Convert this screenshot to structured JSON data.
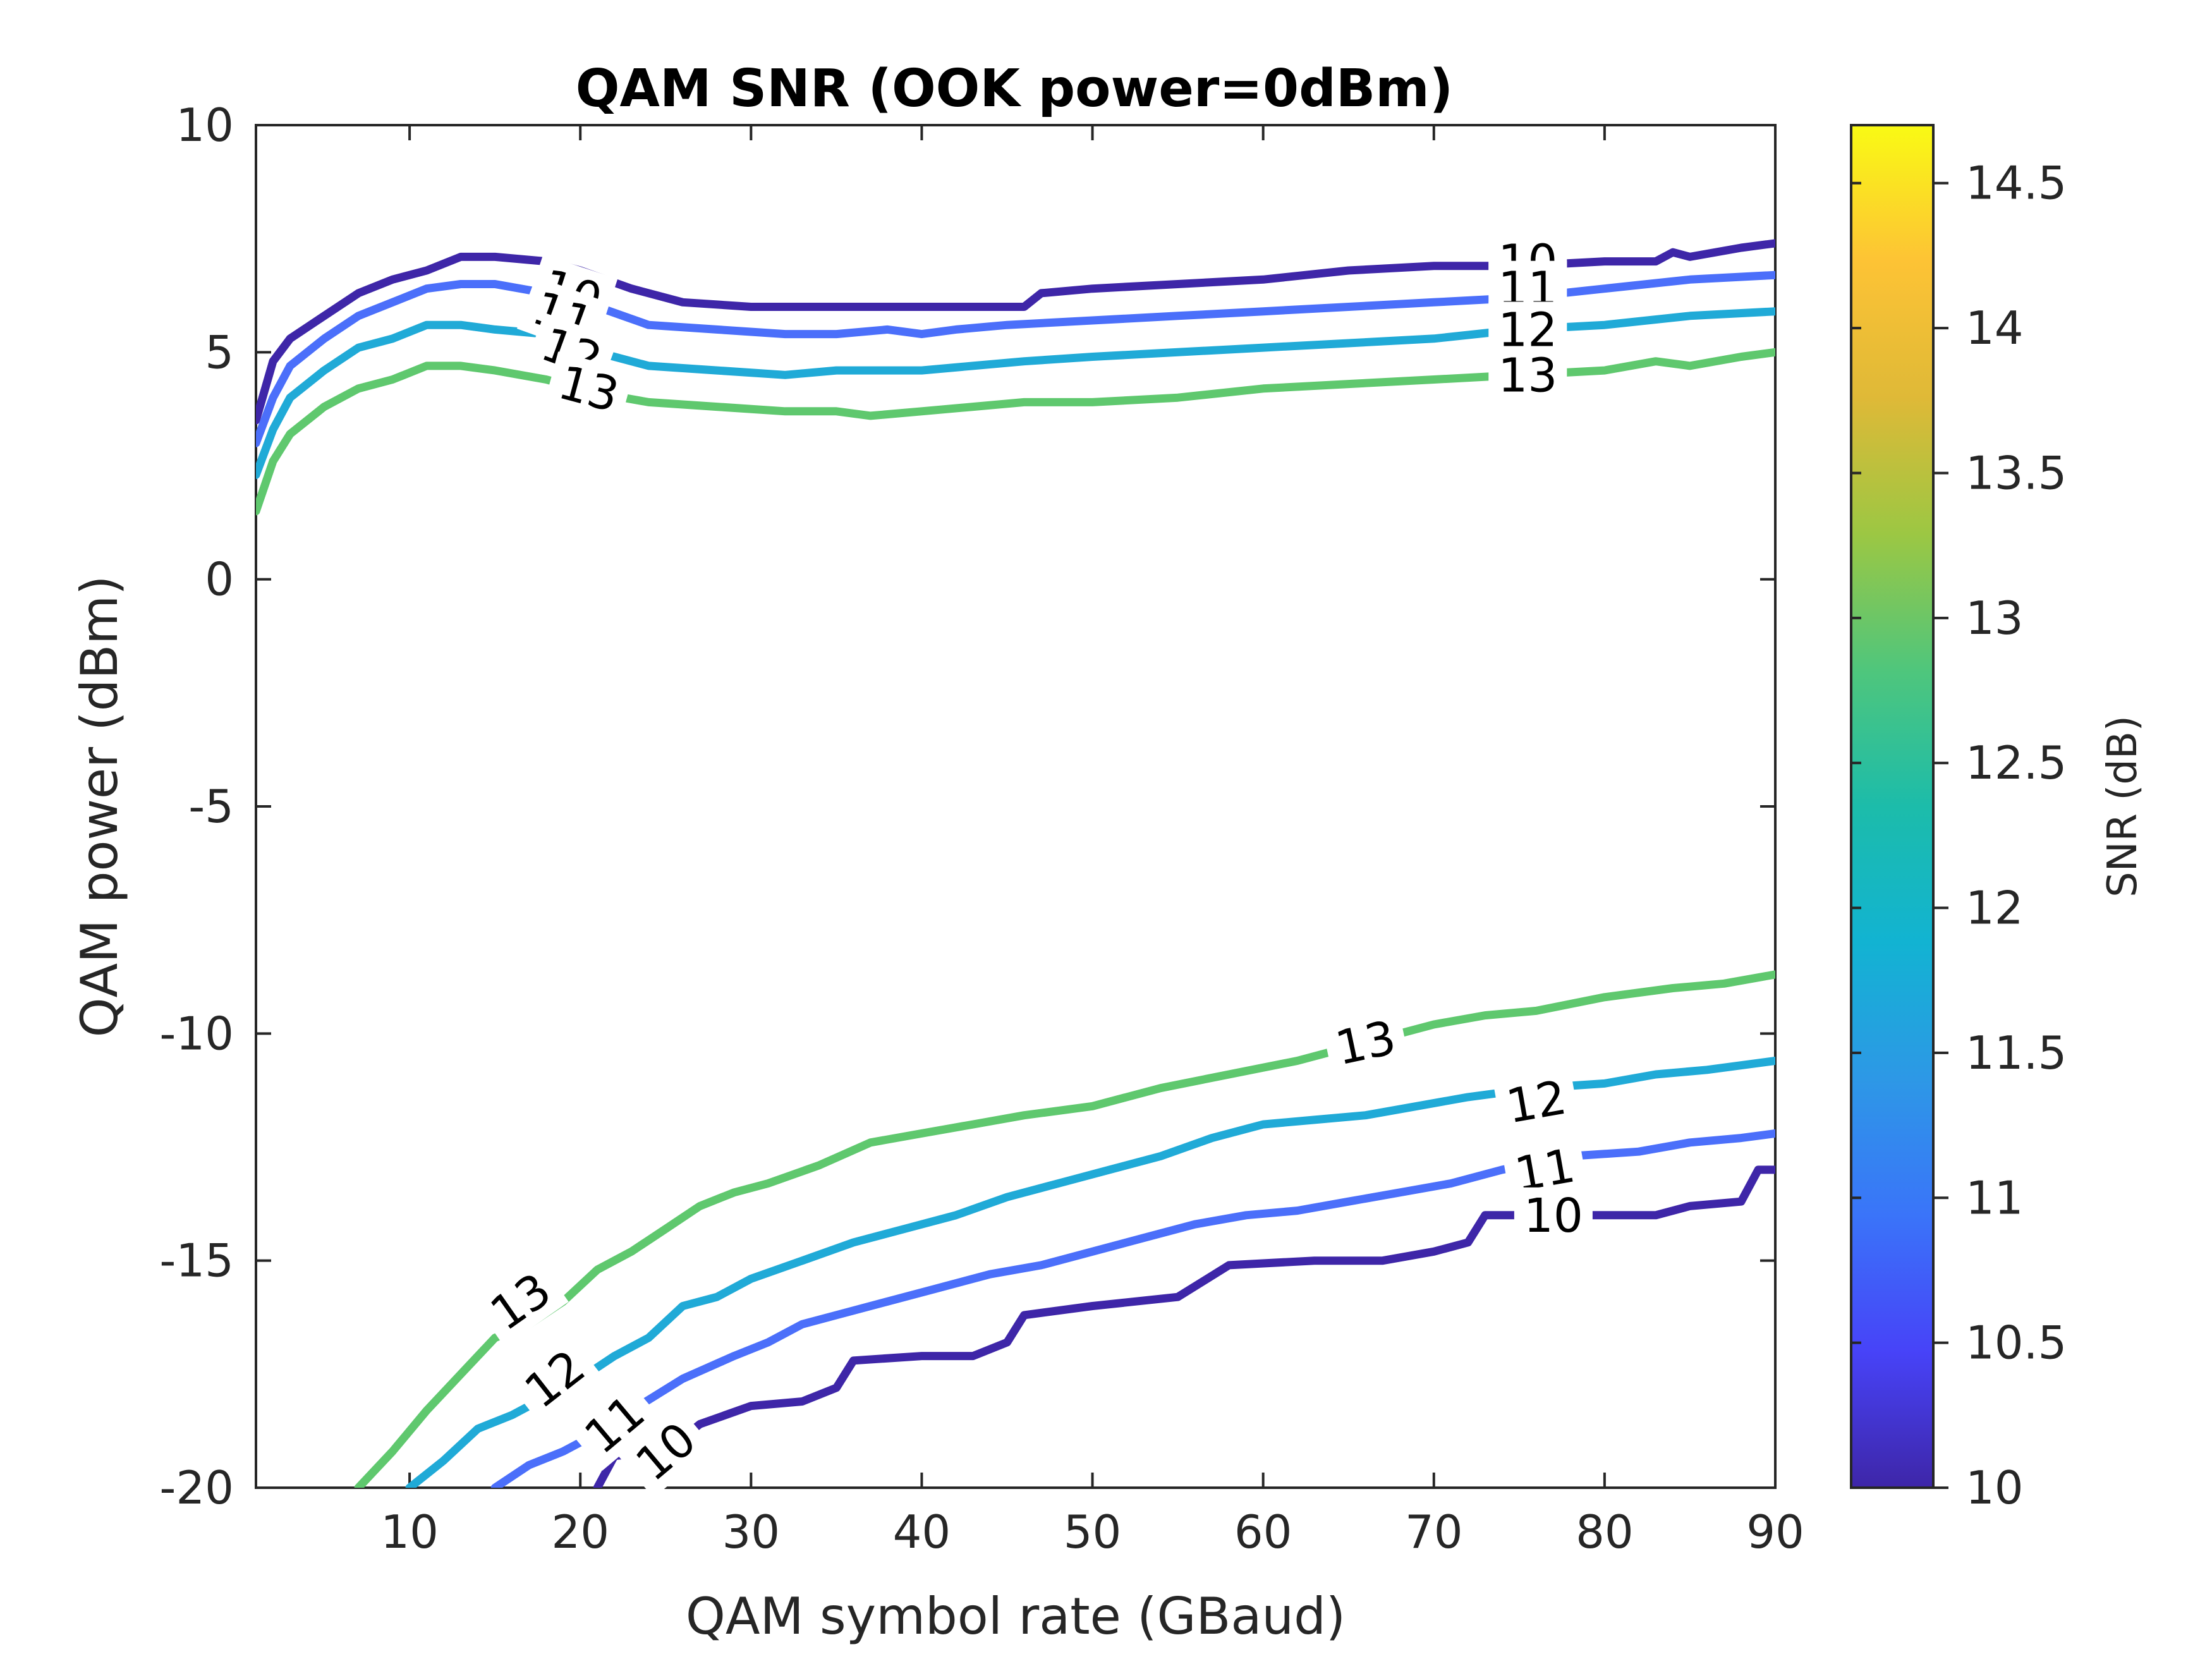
{
  "chart_data": {
    "type": "contour",
    "title": "QAM SNR (OOK power=0dBm)",
    "xlabel": "QAM symbol rate (GBaud)",
    "ylabel": "QAM power (dBm)",
    "colorbar_label": "SNR (dB)",
    "xlim": [
      1,
      90
    ],
    "ylim": [
      -20,
      10
    ],
    "xticks": [
      10,
      20,
      30,
      40,
      50,
      60,
      70,
      80,
      90
    ],
    "yticks": [
      -20,
      -15,
      -10,
      -5,
      0,
      5,
      10
    ],
    "clim": [
      10,
      14.7
    ],
    "cticks": [
      10,
      10.5,
      11,
      11.5,
      12,
      12.5,
      13,
      13.5,
      14,
      14.5
    ],
    "grid": false,
    "colormap": "parula",
    "series": [
      {
        "level": 10,
        "color": "#3e26a8",
        "branch": "upper",
        "points": [
          [
            1,
            3.5
          ],
          [
            2,
            4.8
          ],
          [
            3,
            5.3
          ],
          [
            5,
            5.8
          ],
          [
            7,
            6.3
          ],
          [
            9,
            6.6
          ],
          [
            11,
            6.8
          ],
          [
            13,
            7.1
          ],
          [
            15,
            7.1
          ],
          [
            18,
            7.0
          ],
          [
            20,
            6.8
          ],
          [
            23,
            6.4
          ],
          [
            26,
            6.1
          ],
          [
            30,
            6.0
          ],
          [
            35,
            6.0
          ],
          [
            40,
            6.0
          ],
          [
            45,
            6.0
          ],
          [
            46,
            6.0
          ],
          [
            47,
            6.3
          ],
          [
            50,
            6.4
          ],
          [
            55,
            6.5
          ],
          [
            60,
            6.6
          ],
          [
            65,
            6.8
          ],
          [
            70,
            6.9
          ],
          [
            75,
            6.9
          ],
          [
            80,
            7.0
          ],
          [
            83,
            7.0
          ],
          [
            84,
            7.2
          ],
          [
            85,
            7.1
          ],
          [
            88,
            7.3
          ],
          [
            90,
            7.4
          ]
        ]
      },
      {
        "level": 10,
        "color": "#3e26a8",
        "branch": "lower",
        "points": [
          [
            21,
            -20
          ],
          [
            22,
            -19.3
          ],
          [
            25,
            -19.2
          ],
          [
            27,
            -18.6
          ],
          [
            30,
            -18.2
          ],
          [
            33,
            -18.1
          ],
          [
            35,
            -17.8
          ],
          [
            36,
            -17.2
          ],
          [
            40,
            -17.1
          ],
          [
            43,
            -17.1
          ],
          [
            45,
            -16.8
          ],
          [
            46,
            -16.2
          ],
          [
            50,
            -16.0
          ],
          [
            55,
            -15.8
          ],
          [
            58,
            -15.1
          ],
          [
            63,
            -15.0
          ],
          [
            67,
            -15.0
          ],
          [
            70,
            -14.8
          ],
          [
            72,
            -14.6
          ],
          [
            73,
            -14.0
          ],
          [
            76,
            -14.0
          ],
          [
            80,
            -14.0
          ],
          [
            83,
            -14.0
          ],
          [
            85,
            -13.8
          ],
          [
            88,
            -13.7
          ],
          [
            89,
            -13.0
          ],
          [
            90,
            -13.0
          ]
        ]
      },
      {
        "level": 11,
        "color": "#4b6ffa",
        "branch": "upper",
        "points": [
          [
            1,
            3.0
          ],
          [
            2,
            4.0
          ],
          [
            3,
            4.7
          ],
          [
            5,
            5.3
          ],
          [
            7,
            5.8
          ],
          [
            9,
            6.1
          ],
          [
            11,
            6.4
          ],
          [
            13,
            6.5
          ],
          [
            15,
            6.5
          ],
          [
            18,
            6.3
          ],
          [
            21,
            6.0
          ],
          [
            24,
            5.6
          ],
          [
            28,
            5.5
          ],
          [
            32,
            5.4
          ],
          [
            35,
            5.4
          ],
          [
            38,
            5.5
          ],
          [
            40,
            5.4
          ],
          [
            42,
            5.5
          ],
          [
            45,
            5.6
          ],
          [
            50,
            5.7
          ],
          [
            55,
            5.8
          ],
          [
            60,
            5.9
          ],
          [
            65,
            6.0
          ],
          [
            70,
            6.1
          ],
          [
            75,
            6.2
          ],
          [
            80,
            6.4
          ],
          [
            85,
            6.6
          ],
          [
            90,
            6.7
          ]
        ]
      },
      {
        "level": 11,
        "color": "#4b6ffa",
        "branch": "lower",
        "points": [
          [
            15,
            -20
          ],
          [
            17,
            -19.5
          ],
          [
            19,
            -19.2
          ],
          [
            21,
            -18.8
          ],
          [
            23,
            -18.3
          ],
          [
            26,
            -17.6
          ],
          [
            29,
            -17.1
          ],
          [
            31,
            -16.8
          ],
          [
            33,
            -16.4
          ],
          [
            35,
            -16.2
          ],
          [
            38,
            -15.9
          ],
          [
            41,
            -15.6
          ],
          [
            44,
            -15.3
          ],
          [
            47,
            -15.1
          ],
          [
            50,
            -14.8
          ],
          [
            53,
            -14.5
          ],
          [
            56,
            -14.2
          ],
          [
            59,
            -14.0
          ],
          [
            62,
            -13.9
          ],
          [
            65,
            -13.7
          ],
          [
            68,
            -13.5
          ],
          [
            71,
            -13.3
          ],
          [
            74,
            -13.0
          ],
          [
            78,
            -12.7
          ],
          [
            82,
            -12.6
          ],
          [
            85,
            -12.4
          ],
          [
            88,
            -12.3
          ],
          [
            90,
            -12.2
          ]
        ]
      },
      {
        "level": 12,
        "color": "#20aad7",
        "branch": "upper",
        "points": [
          [
            1,
            2.3
          ],
          [
            2,
            3.3
          ],
          [
            3,
            4.0
          ],
          [
            5,
            4.6
          ],
          [
            7,
            5.1
          ],
          [
            9,
            5.3
          ],
          [
            11,
            5.6
          ],
          [
            13,
            5.6
          ],
          [
            15,
            5.5
          ],
          [
            18,
            5.4
          ],
          [
            21,
            5.0
          ],
          [
            24,
            4.7
          ],
          [
            28,
            4.6
          ],
          [
            32,
            4.5
          ],
          [
            35,
            4.6
          ],
          [
            38,
            4.6
          ],
          [
            40,
            4.6
          ],
          [
            43,
            4.7
          ],
          [
            46,
            4.8
          ],
          [
            50,
            4.9
          ],
          [
            55,
            5.0
          ],
          [
            60,
            5.1
          ],
          [
            65,
            5.2
          ],
          [
            70,
            5.3
          ],
          [
            75,
            5.5
          ],
          [
            80,
            5.6
          ],
          [
            85,
            5.8
          ],
          [
            90,
            5.9
          ]
        ]
      },
      {
        "level": 12,
        "color": "#20aad7",
        "branch": "lower",
        "points": [
          [
            10,
            -20
          ],
          [
            12,
            -19.4
          ],
          [
            14,
            -18.7
          ],
          [
            16,
            -18.4
          ],
          [
            18,
            -18.0
          ],
          [
            20,
            -17.6
          ],
          [
            22,
            -17.1
          ],
          [
            24,
            -16.7
          ],
          [
            26,
            -16.0
          ],
          [
            28,
            -15.8
          ],
          [
            30,
            -15.4
          ],
          [
            33,
            -15.0
          ],
          [
            36,
            -14.6
          ],
          [
            39,
            -14.3
          ],
          [
            42,
            -14.0
          ],
          [
            45,
            -13.6
          ],
          [
            48,
            -13.3
          ],
          [
            51,
            -13.0
          ],
          [
            54,
            -12.7
          ],
          [
            57,
            -12.3
          ],
          [
            60,
            -12.0
          ],
          [
            63,
            -11.9
          ],
          [
            66,
            -11.8
          ],
          [
            69,
            -11.6
          ],
          [
            72,
            -11.4
          ],
          [
            76,
            -11.2
          ],
          [
            80,
            -11.1
          ],
          [
            83,
            -10.9
          ],
          [
            86,
            -10.8
          ],
          [
            90,
            -10.6
          ]
        ]
      },
      {
        "level": 13,
        "color": "#5fc86e",
        "branch": "upper",
        "points": [
          [
            1,
            1.5
          ],
          [
            2,
            2.6
          ],
          [
            3,
            3.2
          ],
          [
            5,
            3.8
          ],
          [
            7,
            4.2
          ],
          [
            9,
            4.4
          ],
          [
            11,
            4.7
          ],
          [
            13,
            4.7
          ],
          [
            15,
            4.6
          ],
          [
            18,
            4.4
          ],
          [
            21,
            4.1
          ],
          [
            24,
            3.9
          ],
          [
            28,
            3.8
          ],
          [
            32,
            3.7
          ],
          [
            35,
            3.7
          ],
          [
            37,
            3.6
          ],
          [
            40,
            3.7
          ],
          [
            43,
            3.8
          ],
          [
            46,
            3.9
          ],
          [
            50,
            3.9
          ],
          [
            55,
            4.0
          ],
          [
            60,
            4.2
          ],
          [
            65,
            4.3
          ],
          [
            70,
            4.4
          ],
          [
            75,
            4.5
          ],
          [
            80,
            4.6
          ],
          [
            83,
            4.8
          ],
          [
            85,
            4.7
          ],
          [
            88,
            4.9
          ],
          [
            90,
            5.0
          ]
        ]
      },
      {
        "level": 13,
        "color": "#5fc86e",
        "branch": "lower",
        "points": [
          [
            7,
            -20
          ],
          [
            9,
            -19.2
          ],
          [
            11,
            -18.3
          ],
          [
            13,
            -17.5
          ],
          [
            15,
            -16.7
          ],
          [
            17,
            -16.4
          ],
          [
            19,
            -15.9
          ],
          [
            21,
            -15.2
          ],
          [
            23,
            -14.8
          ],
          [
            25,
            -14.3
          ],
          [
            27,
            -13.8
          ],
          [
            29,
            -13.5
          ],
          [
            31,
            -13.3
          ],
          [
            34,
            -12.9
          ],
          [
            37,
            -12.4
          ],
          [
            40,
            -12.2
          ],
          [
            43,
            -12.0
          ],
          [
            46,
            -11.8
          ],
          [
            50,
            -11.6
          ],
          [
            54,
            -11.2
          ],
          [
            58,
            -10.9
          ],
          [
            62,
            -10.6
          ],
          [
            66,
            -10.2
          ],
          [
            70,
            -9.8
          ],
          [
            73,
            -9.6
          ],
          [
            76,
            -9.5
          ],
          [
            80,
            -9.2
          ],
          [
            84,
            -9.0
          ],
          [
            87,
            -8.9
          ],
          [
            90,
            -8.7
          ]
        ]
      }
    ],
    "contour_labels": [
      {
        "text": "10",
        "x": 19.5,
        "y": 6.3,
        "angle": 18
      },
      {
        "text": "11",
        "x": 19.0,
        "y": 5.8,
        "angle": 20
      },
      {
        "text": "12",
        "x": 19.5,
        "y": 5.0,
        "angle": 20
      },
      {
        "text": "13",
        "x": 20.5,
        "y": 4.2,
        "angle": 15
      },
      {
        "text": "10",
        "x": 75.5,
        "y": 7.0,
        "angle": 0
      },
      {
        "text": "11",
        "x": 75.5,
        "y": 6.4,
        "angle": 0
      },
      {
        "text": "12",
        "x": 75.5,
        "y": 5.5,
        "angle": 0
      },
      {
        "text": "13",
        "x": 75.5,
        "y": 4.5,
        "angle": 0
      },
      {
        "text": "13",
        "x": 66.0,
        "y": -10.2,
        "angle": -12
      },
      {
        "text": "12",
        "x": 76.0,
        "y": -11.5,
        "angle": -10
      },
      {
        "text": "11",
        "x": 76.5,
        "y": -13.0,
        "angle": -10
      },
      {
        "text": "10",
        "x": 77.0,
        "y": -14.0,
        "angle": 0
      },
      {
        "text": "13",
        "x": 16.5,
        "y": -15.9,
        "angle": -35
      },
      {
        "text": "12",
        "x": 18.5,
        "y": -17.6,
        "angle": -38
      },
      {
        "text": "11",
        "x": 22.0,
        "y": -18.6,
        "angle": -40
      },
      {
        "text": "10",
        "x": 25.0,
        "y": -19.2,
        "angle": -40
      }
    ]
  }
}
